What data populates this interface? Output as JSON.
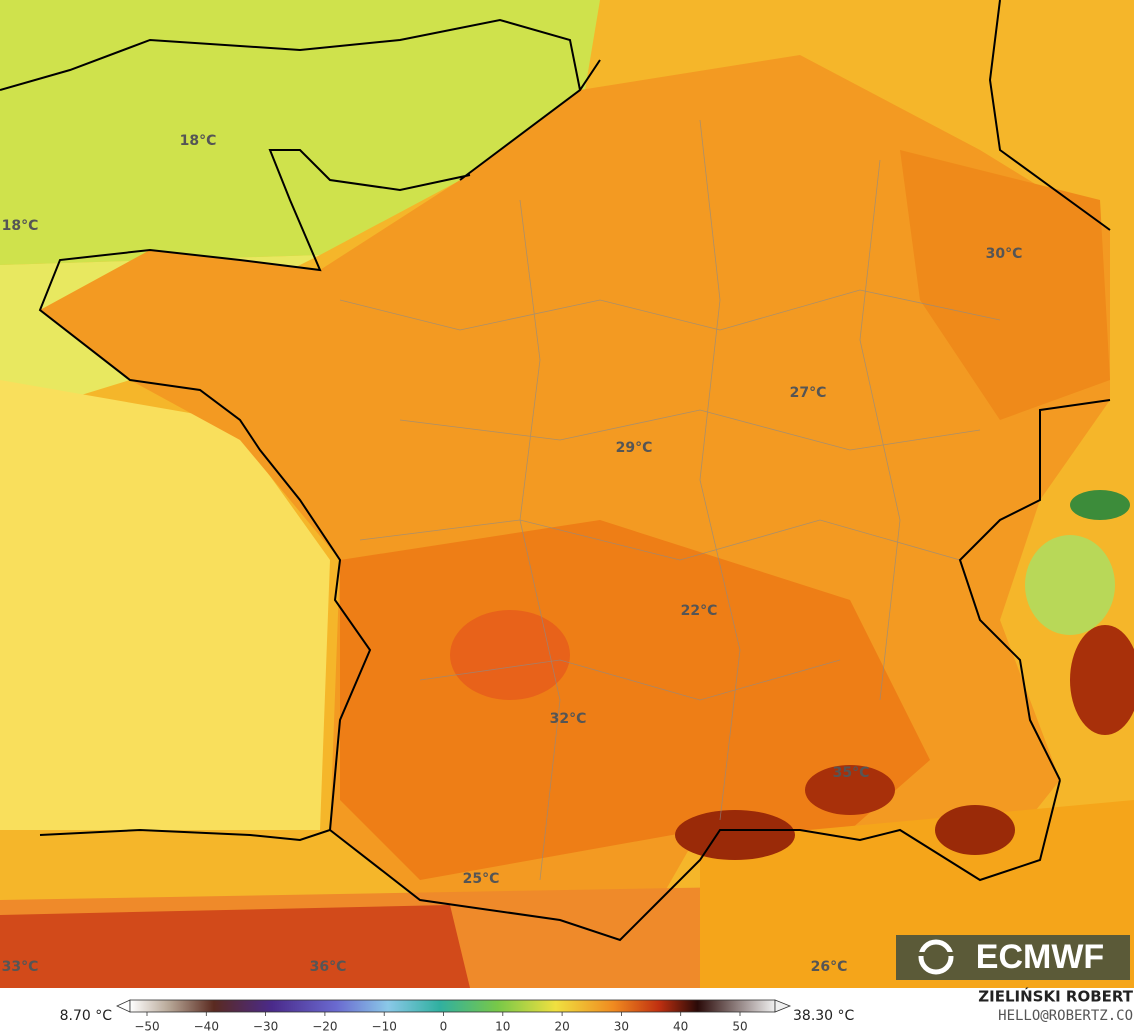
{
  "map": {
    "labels": [
      "18°C",
      "18°C",
      "30°C",
      "27°C",
      "29°C",
      "22°C",
      "32°C",
      "35°C",
      "25°C",
      "33°C",
      "36°C",
      "26°C"
    ],
    "logo": "ECMWF"
  },
  "colorbar": {
    "min_label": "8.70 °C",
    "max_label": "38.30 °C",
    "ticks": [
      {
        "value": -50,
        "label": "−50"
      },
      {
        "value": -40,
        "label": "−40"
      },
      {
        "value": -30,
        "label": "−30"
      },
      {
        "value": -20,
        "label": "−20"
      },
      {
        "value": -10,
        "label": "−10"
      },
      0,
      10,
      20,
      30,
      40,
      50
    ]
  },
  "credit": {
    "author": "ZIELIŃSKI ROBERT",
    "email": "HELLO@ROBERTZ.CO"
  }
}
